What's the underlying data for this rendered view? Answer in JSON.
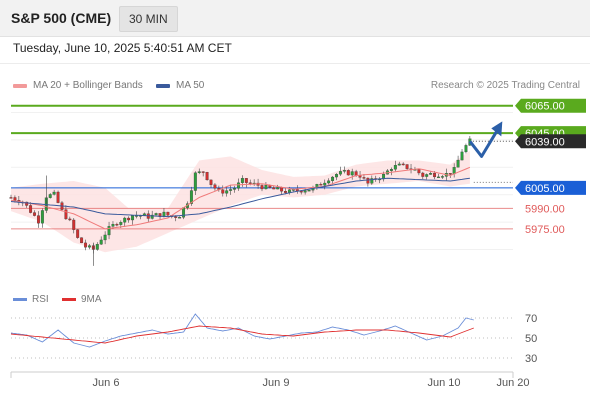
{
  "header": {
    "instrument": "S&P 500 (CME)",
    "timeframe": "30 MIN",
    "datetime": "Tuesday, June 10, 2025 5:40:51 AM CET"
  },
  "legend": {
    "ma20_label": "MA 20 + Bollinger Bands",
    "ma50_label": "MA 50",
    "credit": "Research © 2025 Trading Central"
  },
  "lower_legend": {
    "rsi_label": "RSI",
    "ma9_label": "9MA"
  },
  "colors": {
    "candle_up": "#2e9e3e",
    "candle_down": "#d03030",
    "bollinger_fill": "#fde2e2",
    "ma20": "#f07a7a",
    "ma50": "#3a5a9c",
    "resistance": "#5aaa1e",
    "pivot": "#1a5fd6",
    "support": "#e05a5a",
    "rsi": "#6a8ed8",
    "ma9": "#e03030",
    "arrow": "#2b5fa8"
  },
  "chart_data": [
    {
      "type": "candlestick",
      "x_labels": [
        "Jun 6",
        "Jun 9",
        "Jun 10",
        "Jun 20"
      ],
      "ylim": [
        5945,
        6075
      ],
      "levels": [
        {
          "kind": "resistance",
          "value": 6065.0,
          "label": "6065.00"
        },
        {
          "kind": "resistance",
          "value": 6045.0,
          "label": "6045.00"
        },
        {
          "kind": "current",
          "value": 6039.0,
          "label": "6039.00"
        },
        {
          "kind": "pivot",
          "value": 6005.0,
          "label": "6005.00"
        },
        {
          "kind": "support",
          "value": 5990.0,
          "label": "5990.00"
        },
        {
          "kind": "support",
          "value": 5975.0,
          "label": "5975.00"
        }
      ],
      "close_path": [
        [
          0,
          5998
        ],
        [
          3,
          5995
        ],
        [
          5,
          5988
        ],
        [
          7,
          5981
        ],
        [
          9,
          5999
        ],
        [
          11,
          6000
        ],
        [
          13,
          5988
        ],
        [
          15,
          5980
        ],
        [
          17,
          5968
        ],
        [
          19,
          5962
        ],
        [
          21,
          5960
        ],
        [
          23,
          5968
        ],
        [
          25,
          5975
        ],
        [
          27,
          5980
        ],
        [
          29,
          5982
        ],
        [
          31,
          5985
        ],
        [
          33,
          5985
        ],
        [
          35,
          5984
        ],
        [
          37,
          5985
        ],
        [
          39,
          5986
        ],
        [
          41,
          5984
        ],
        [
          43,
          5985
        ],
        [
          45,
          5995
        ],
        [
          47,
          6015
        ],
        [
          49,
          6017
        ],
        [
          51,
          6008
        ],
        [
          53,
          6002
        ],
        [
          55,
          6003
        ],
        [
          57,
          6005
        ],
        [
          59,
          6010
        ],
        [
          61,
          6008
        ],
        [
          63,
          6007
        ],
        [
          65,
          6005
        ],
        [
          67,
          6004
        ],
        [
          69,
          6003
        ],
        [
          71,
          6002
        ],
        [
          73,
          6003
        ],
        [
          75,
          6004
        ],
        [
          77,
          6004
        ],
        [
          79,
          6008
        ],
        [
          81,
          6012
        ],
        [
          83,
          6015
        ],
        [
          85,
          6016
        ],
        [
          87,
          6016
        ],
        [
          89,
          6014
        ],
        [
          91,
          6008
        ],
        [
          93,
          6012
        ],
        [
          95,
          6014
        ],
        [
          97,
          6020
        ],
        [
          99,
          6021
        ],
        [
          101,
          6020
        ],
        [
          103,
          6018
        ],
        [
          105,
          6014
        ],
        [
          107,
          6015
        ],
        [
          109,
          6015
        ],
        [
          111,
          6015
        ],
        [
          113,
          6018
        ],
        [
          115,
          6032
        ],
        [
          117,
          6039
        ]
      ],
      "forecast": [
        [
          117,
          6039
        ],
        [
          120,
          6028
        ],
        [
          124,
          6047
        ]
      ],
      "ma20": [
        [
          0,
          5996
        ],
        [
          8,
          5992
        ],
        [
          16,
          5986
        ],
        [
          24,
          5975
        ],
        [
          32,
          5978
        ],
        [
          40,
          5983
        ],
        [
          48,
          5998
        ],
        [
          56,
          6007
        ],
        [
          64,
          6008
        ],
        [
          72,
          6004
        ],
        [
          80,
          6006
        ],
        [
          88,
          6014
        ],
        [
          96,
          6016
        ],
        [
          104,
          6019
        ],
        [
          112,
          6014
        ],
        [
          117,
          6020
        ]
      ],
      "ma50": [
        [
          0,
          5995
        ],
        [
          8,
          5993
        ],
        [
          16,
          5991
        ],
        [
          24,
          5986
        ],
        [
          32,
          5985
        ],
        [
          40,
          5984
        ],
        [
          48,
          5986
        ],
        [
          56,
          5991
        ],
        [
          64,
          5997
        ],
        [
          72,
          6002
        ],
        [
          80,
          6006
        ],
        [
          88,
          6010
        ],
        [
          96,
          6012
        ],
        [
          104,
          6011
        ],
        [
          112,
          6010
        ],
        [
          117,
          6012
        ]
      ],
      "bollinger_upper": [
        [
          0,
          6005
        ],
        [
          8,
          6008
        ],
        [
          16,
          6010
        ],
        [
          24,
          6005
        ],
        [
          30,
          5990
        ],
        [
          40,
          5990
        ],
        [
          48,
          6025
        ],
        [
          56,
          6028
        ],
        [
          64,
          6018
        ],
        [
          72,
          6013
        ],
        [
          80,
          6014
        ],
        [
          88,
          6022
        ],
        [
          96,
          6025
        ],
        [
          104,
          6025
        ],
        [
          112,
          6022
        ],
        [
          117,
          6032
        ]
      ],
      "bollinger_lower": [
        [
          0,
          5988
        ],
        [
          8,
          5980
        ],
        [
          16,
          5965
        ],
        [
          24,
          5958
        ],
        [
          32,
          5962
        ],
        [
          40,
          5972
        ],
        [
          48,
          5982
        ],
        [
          56,
          5992
        ],
        [
          64,
          6000
        ],
        [
          72,
          5998
        ],
        [
          80,
          6000
        ],
        [
          88,
          6006
        ],
        [
          96,
          6008
        ],
        [
          104,
          6010
        ],
        [
          112,
          6006
        ],
        [
          117,
          6008
        ]
      ]
    },
    {
      "type": "line",
      "name": "rsi_panel",
      "yticks": [
        70,
        50,
        30
      ],
      "ylim": [
        20,
        80
      ],
      "series": [
        {
          "name": "RSI",
          "values": [
            [
              0,
              55
            ],
            [
              4,
              53
            ],
            [
              8,
              46
            ],
            [
              12,
              58
            ],
            [
              16,
              45
            ],
            [
              20,
              41
            ],
            [
              24,
              47
            ],
            [
              28,
              52
            ],
            [
              32,
              55
            ],
            [
              36,
              58
            ],
            [
              40,
              54
            ],
            [
              44,
              56
            ],
            [
              47,
              74
            ],
            [
              50,
              60
            ],
            [
              54,
              57
            ],
            [
              58,
              60
            ],
            [
              62,
              52
            ],
            [
              66,
              49
            ],
            [
              70,
              52
            ],
            [
              74,
              55
            ],
            [
              78,
              56
            ],
            [
              82,
              61
            ],
            [
              86,
              58
            ],
            [
              90,
              53
            ],
            [
              94,
              57
            ],
            [
              98,
              62
            ],
            [
              102,
              55
            ],
            [
              106,
              48
            ],
            [
              110,
              52
            ],
            [
              114,
              60
            ],
            [
              116,
              70
            ],
            [
              118,
              68
            ]
          ]
        },
        {
          "name": "9MA",
          "values": [
            [
              0,
              54
            ],
            [
              8,
              51
            ],
            [
              16,
              48
            ],
            [
              24,
              45
            ],
            [
              32,
              52
            ],
            [
              40,
              56
            ],
            [
              48,
              62
            ],
            [
              56,
              60
            ],
            [
              64,
              54
            ],
            [
              72,
              52
            ],
            [
              80,
              56
            ],
            [
              88,
              58
            ],
            [
              96,
              58
            ],
            [
              104,
              55
            ],
            [
              112,
              51
            ],
            [
              118,
              60
            ]
          ]
        }
      ]
    }
  ]
}
